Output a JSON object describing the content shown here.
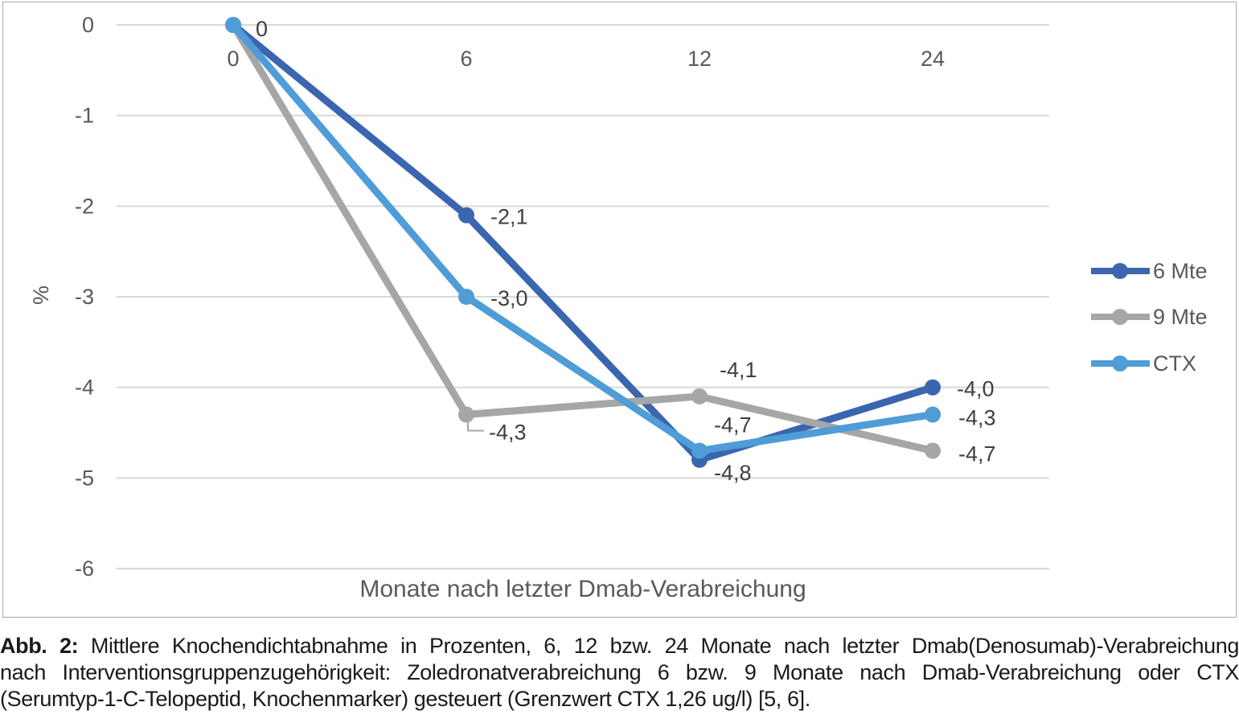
{
  "chart_data": {
    "type": "line",
    "title": "",
    "xlabel": "Monate nach letzter Dmab-Verabreichung",
    "ylabel": "%",
    "x": [
      0,
      6,
      12,
      24
    ],
    "x_tick_labels": [
      "0",
      "6",
      "12",
      "24"
    ],
    "y_ticks": [
      0,
      -1,
      -2,
      -3,
      -4,
      -5,
      -6
    ],
    "y_tick_labels": [
      "0",
      "-1",
      "-2",
      "-3",
      "-4",
      "-5",
      "-6"
    ],
    "ylim": [
      -6,
      0
    ],
    "grid": true,
    "legend_position": "right",
    "series": [
      {
        "name": "6 Mte",
        "color": "#3A66AF",
        "values": [
          0,
          -2.1,
          -4.8,
          -4.0
        ],
        "point_labels": [
          "0",
          "-2,1",
          "-4,8",
          "-4,0"
        ]
      },
      {
        "name": "9 Mte",
        "color": "#A6A6A6",
        "values": [
          0,
          -4.3,
          -4.1,
          -4.7
        ],
        "point_labels": [
          "",
          "-4,3",
          "-4,1",
          "-4,7"
        ]
      },
      {
        "name": "CTX",
        "color": "#4F9CD7",
        "values": [
          0,
          -3.0,
          -4.7,
          -4.3
        ],
        "point_labels": [
          "",
          "-3,0",
          "-4,7",
          "-4,3"
        ]
      }
    ],
    "colors": {
      "grid": "#D8D8D8",
      "axis_text": "#595959",
      "data_label": "#3F3F3F",
      "frame_border": "#A9A9A9"
    }
  },
  "caption": {
    "prefix": "Abb. 2:",
    "line1_rest": " Mittlere Knochendichtabnahme in Prozenten, 6, 12 bzw. 24 Monate nach letzter Dmab(Denosumab)-Verabreichung",
    "line2": "nach Interventionsgruppenzugehörigkeit: Zoledronatverabreichung 6 bzw. 9 Monate nach Dmab-Verabreichung oder CTX",
    "line3": "(Serumtyp-1-C-Telopeptid, Knochenmarker) gesteuert (Grenzwert CTX 1,26 ug/l) [5, 6]."
  }
}
